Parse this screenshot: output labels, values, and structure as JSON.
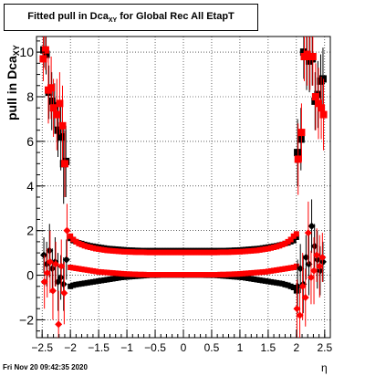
{
  "title": {
    "text_main": "Fitted pull in Dca",
    "text_sub": "XY",
    "text_rest": " for Global Rec All EtapT"
  },
  "footer_date": "Fri Nov 20 09:42:35 2020",
  "chart_data": {
    "type": "scatter",
    "xlabel": "η",
    "ylabel_main": "pull in Dca",
    "ylabel_sub": "XY",
    "xlim": [
      -2.6,
      2.6
    ],
    "ylim": [
      -2.8,
      10.7
    ],
    "xticks": [
      "-2.5",
      "-2",
      "-1.5",
      "-1",
      "-0.5",
      "0",
      "0.5",
      "1",
      "1.5",
      "2",
      "2.5"
    ],
    "yticks": [
      "-2",
      "0",
      "2",
      "4",
      "6",
      "8",
      "10"
    ],
    "grid": true,
    "colors": {
      "black": "#000000",
      "red": "#ff0000",
      "error_bar_red": "#ff0000"
    },
    "series": [
      {
        "color": "#000000",
        "marker": "square",
        "x": [
          -2.0,
          -1.95,
          -1.9,
          -1.85,
          -1.8,
          -1.75,
          -1.7,
          -1.65,
          -1.6,
          -1.55,
          -1.5,
          -1.45,
          -1.4,
          -1.35,
          -1.3,
          -1.25,
          -1.2,
          -1.15,
          -1.1,
          -1.05,
          -1.0,
          -0.95,
          -0.9,
          -0.85,
          -0.8,
          -0.75,
          -0.7,
          -0.65,
          -0.6,
          -0.55,
          -0.5,
          -0.45,
          -0.4,
          -0.35,
          -0.3,
          -0.25,
          -0.2,
          -0.15,
          -0.1,
          -0.05,
          0.0,
          0.05,
          0.1,
          0.15,
          0.2,
          0.25,
          0.3,
          0.35,
          0.4,
          0.45,
          0.5,
          0.55,
          0.6,
          0.65,
          0.7,
          0.75,
          0.8,
          0.85,
          0.9,
          0.95,
          1.0,
          1.05,
          1.1,
          1.15,
          1.2,
          1.25,
          1.3,
          1.35,
          1.4,
          1.45,
          1.5,
          1.55,
          1.6,
          1.65,
          1.7,
          1.75,
          1.8,
          1.85,
          1.9,
          1.95,
          2.0
        ],
        "y": [
          1.65,
          1.55,
          1.5,
          1.45,
          1.42,
          1.38,
          1.35,
          1.32,
          1.3,
          1.28,
          1.26,
          1.24,
          1.22,
          1.2,
          1.19,
          1.18,
          1.17,
          1.16,
          1.15,
          1.14,
          1.13,
          1.12,
          1.12,
          1.11,
          1.11,
          1.1,
          1.1,
          1.1,
          1.1,
          1.1,
          1.1,
          1.1,
          1.1,
          1.1,
          1.1,
          1.1,
          1.1,
          1.1,
          1.1,
          1.1,
          1.1,
          1.1,
          1.1,
          1.1,
          1.1,
          1.1,
          1.1,
          1.1,
          1.1,
          1.1,
          1.1,
          1.1,
          1.1,
          1.1,
          1.1,
          1.1,
          1.11,
          1.11,
          1.12,
          1.12,
          1.13,
          1.14,
          1.15,
          1.16,
          1.17,
          1.18,
          1.19,
          1.2,
          1.22,
          1.24,
          1.26,
          1.28,
          1.3,
          1.32,
          1.35,
          1.38,
          1.42,
          1.45,
          1.5,
          1.55,
          1.7
        ]
      },
      {
        "color": "#ff0000",
        "marker": "square",
        "x": [
          -2.0,
          -1.95,
          -1.9,
          -1.85,
          -1.8,
          -1.75,
          -1.7,
          -1.65,
          -1.6,
          -1.55,
          -1.5,
          -1.45,
          -1.4,
          -1.35,
          -1.3,
          -1.25,
          -1.2,
          -1.15,
          -1.1,
          -1.05,
          -1.0,
          -0.95,
          -0.9,
          -0.85,
          -0.8,
          -0.75,
          -0.7,
          -0.65,
          -0.6,
          -0.55,
          -0.5,
          -0.45,
          -0.4,
          -0.35,
          -0.3,
          -0.25,
          -0.2,
          -0.15,
          -0.1,
          -0.05,
          0.0,
          0.05,
          0.1,
          0.15,
          0.2,
          0.25,
          0.3,
          0.35,
          0.4,
          0.45,
          0.5,
          0.55,
          0.6,
          0.65,
          0.7,
          0.75,
          0.8,
          0.85,
          0.9,
          0.95,
          1.0,
          1.05,
          1.1,
          1.15,
          1.2,
          1.25,
          1.3,
          1.35,
          1.4,
          1.45,
          1.5,
          1.55,
          1.6,
          1.65,
          1.7,
          1.75,
          1.8,
          1.85,
          1.9,
          1.95,
          2.0
        ],
        "y": [
          1.75,
          1.6,
          1.5,
          1.42,
          1.37,
          1.32,
          1.28,
          1.25,
          1.22,
          1.19,
          1.17,
          1.15,
          1.13,
          1.11,
          1.1,
          1.09,
          1.08,
          1.07,
          1.06,
          1.05,
          1.05,
          1.04,
          1.04,
          1.03,
          1.03,
          1.03,
          1.03,
          1.02,
          1.02,
          1.02,
          1.02,
          1.02,
          1.02,
          1.02,
          1.02,
          1.02,
          1.02,
          1.02,
          1.02,
          1.02,
          1.02,
          1.02,
          1.02,
          1.02,
          1.02,
          1.02,
          1.02,
          1.02,
          1.02,
          1.02,
          1.02,
          1.02,
          1.02,
          1.03,
          1.03,
          1.03,
          1.03,
          1.04,
          1.04,
          1.05,
          1.05,
          1.06,
          1.07,
          1.08,
          1.09,
          1.1,
          1.11,
          1.13,
          1.15,
          1.17,
          1.19,
          1.22,
          1.25,
          1.28,
          1.32,
          1.37,
          1.42,
          1.5,
          1.6,
          1.75,
          1.85
        ]
      },
      {
        "color": "#000000",
        "marker": "square",
        "x": [
          -2.0,
          -1.95,
          -1.9,
          -1.85,
          -1.8,
          -1.75,
          -1.7,
          -1.65,
          -1.6,
          -1.55,
          -1.5,
          -1.45,
          -1.4,
          -1.35,
          -1.3,
          -1.25,
          -1.2,
          -1.15,
          -1.1,
          -1.05,
          -1.0,
          -0.95,
          -0.9,
          -0.85,
          -0.8,
          -0.75,
          -0.7,
          -0.65,
          -0.6,
          -0.55,
          -0.5,
          -0.45,
          -0.4,
          -0.35,
          -0.3,
          -0.25,
          -0.2,
          -0.15,
          -0.1,
          -0.05,
          0.0,
          0.05,
          0.1,
          0.15,
          0.2,
          0.25,
          0.3,
          0.35,
          0.4,
          0.45,
          0.5,
          0.55,
          0.6,
          0.65,
          0.7,
          0.75,
          0.8,
          0.85,
          0.9,
          0.95,
          1.0,
          1.05,
          1.1,
          1.15,
          1.2,
          1.25,
          1.3,
          1.35,
          1.4,
          1.45,
          1.5,
          1.55,
          1.6,
          1.65,
          1.7,
          1.75,
          1.8,
          1.85,
          1.9,
          1.95,
          2.0
        ],
        "y": [
          -0.5,
          -0.45,
          -0.42,
          -0.4,
          -0.38,
          -0.36,
          -0.34,
          -0.32,
          -0.3,
          -0.28,
          -0.26,
          -0.24,
          -0.22,
          -0.2,
          -0.18,
          -0.16,
          -0.14,
          -0.12,
          -0.1,
          -0.09,
          -0.08,
          -0.07,
          -0.06,
          -0.05,
          -0.04,
          -0.03,
          -0.02,
          -0.01,
          0.0,
          0.0,
          0.0,
          0.0,
          0.01,
          0.01,
          0.01,
          0.01,
          0.01,
          0.01,
          0.01,
          0.01,
          0.01,
          0.01,
          0.01,
          0.01,
          0.01,
          0.01,
          0.01,
          0.01,
          0.0,
          0.0,
          0.0,
          0.0,
          -0.01,
          -0.02,
          -0.03,
          -0.04,
          -0.05,
          -0.06,
          -0.07,
          -0.08,
          -0.09,
          -0.1,
          -0.12,
          -0.14,
          -0.16,
          -0.18,
          -0.2,
          -0.22,
          -0.24,
          -0.26,
          -0.28,
          -0.3,
          -0.32,
          -0.34,
          -0.36,
          -0.38,
          -0.42,
          -0.45,
          -0.5,
          -0.55,
          -0.7
        ]
      },
      {
        "color": "#ff0000",
        "marker": "square",
        "x": [
          -2.0,
          -1.95,
          -1.9,
          -1.85,
          -1.8,
          -1.75,
          -1.7,
          -1.65,
          -1.6,
          -1.55,
          -1.5,
          -1.45,
          -1.4,
          -1.35,
          -1.3,
          -1.25,
          -1.2,
          -1.15,
          -1.1,
          -1.05,
          -1.0,
          -0.95,
          -0.9,
          -0.85,
          -0.8,
          -0.75,
          -0.7,
          -0.65,
          -0.6,
          -0.55,
          -0.5,
          -0.45,
          -0.4,
          -0.35,
          -0.3,
          -0.25,
          -0.2,
          -0.15,
          -0.1,
          -0.05,
          0.0,
          0.05,
          0.1,
          0.15,
          0.2,
          0.25,
          0.3,
          0.35,
          0.4,
          0.45,
          0.5,
          0.55,
          0.6,
          0.65,
          0.7,
          0.75,
          0.8,
          0.85,
          0.9,
          0.95,
          1.0,
          1.05,
          1.1,
          1.15,
          1.2,
          1.25,
          1.3,
          1.35,
          1.4,
          1.45,
          1.5,
          1.55,
          1.6,
          1.65,
          1.7,
          1.75,
          1.8,
          1.85,
          1.9,
          1.95,
          2.0
        ],
        "y": [
          0.35,
          0.33,
          0.31,
          0.29,
          0.27,
          0.25,
          0.23,
          0.21,
          0.19,
          0.17,
          0.15,
          0.14,
          0.13,
          0.12,
          0.11,
          0.1,
          0.09,
          0.08,
          0.07,
          0.06,
          0.05,
          0.05,
          0.04,
          0.04,
          0.03,
          0.03,
          0.03,
          0.02,
          0.02,
          0.02,
          0.02,
          0.02,
          0.02,
          0.02,
          0.02,
          0.02,
          0.02,
          0.02,
          0.02,
          0.02,
          0.02,
          0.02,
          0.02,
          0.02,
          0.02,
          0.02,
          0.02,
          0.02,
          0.02,
          0.02,
          0.02,
          0.02,
          0.02,
          0.03,
          0.03,
          0.03,
          0.04,
          0.04,
          0.05,
          0.05,
          0.06,
          0.07,
          0.08,
          0.09,
          0.1,
          0.11,
          0.12,
          0.13,
          0.14,
          0.15,
          0.17,
          0.19,
          0.21,
          0.23,
          0.25,
          0.27,
          0.29,
          0.31,
          0.33,
          0.35,
          0.4
        ]
      },
      {
        "color": "#000000",
        "marker": "square",
        "errors": true,
        "x": [
          -2.47,
          -2.43,
          -2.38,
          -2.33,
          -2.28,
          -2.22,
          -2.17,
          -2.12,
          -2.08,
          2.02,
          2.08,
          2.13,
          2.18,
          2.23,
          2.28,
          2.33,
          2.38,
          2.43,
          2.47
        ],
        "y": [
          10.1,
          9.9,
          8.2,
          7.8,
          7.6,
          6.5,
          6.2,
          5.0,
          5.1,
          5.5,
          6.1,
          10.0,
          9.9,
          9.6,
          9.7,
          7.8,
          8.1,
          8.7,
          8.8
        ],
        "err": [
          0.8,
          0.9,
          1.2,
          1.3,
          1.0,
          1.2,
          1.5,
          1.8,
          1.6,
          1.5,
          1.4,
          1.2,
          1.6,
          1.4,
          1.2,
          1.3,
          1.5,
          1.2,
          1.4
        ]
      },
      {
        "color": "#ff0000",
        "marker": "square",
        "errors": true,
        "x": [
          -2.48,
          -2.44,
          -2.39,
          -2.34,
          -2.3,
          -2.24,
          -2.19,
          -2.14,
          -2.1,
          2.03,
          2.09,
          2.14,
          2.19,
          2.24,
          2.29,
          2.34,
          2.39,
          2.44,
          2.48
        ],
        "y": [
          9.7,
          10.1,
          8.3,
          8.4,
          7.5,
          7.2,
          7.7,
          6.7,
          5.0,
          5.2,
          6.4,
          9.8,
          9.9,
          9.8,
          9.8,
          8.0,
          7.7,
          7.5,
          7.2
        ],
        "err": [
          1.0,
          0.9,
          1.5,
          1.4,
          1.3,
          1.6,
          1.4,
          1.8,
          1.5,
          1.6,
          1.3,
          1.1,
          1.4,
          1.5,
          1.3,
          1.5,
          1.6,
          1.4,
          1.6
        ]
      },
      {
        "color": "#000000",
        "marker": "diamond",
        "errors": true,
        "x": [
          -2.47,
          -2.42,
          -2.37,
          -2.32,
          -2.27,
          -2.22,
          -2.17,
          -2.12,
          -2.07,
          2.02,
          2.07,
          2.12,
          2.17,
          2.22,
          2.27,
          2.32,
          2.37,
          2.42,
          2.47
        ],
        "y": [
          0.9,
          0.5,
          1.1,
          0.3,
          0.6,
          -0.3,
          -0.1,
          -0.4,
          0.7,
          -0.5,
          0.3,
          -0.4,
          0.8,
          0.5,
          2.2,
          1.3,
          0.7,
          0.2,
          0.6
        ],
        "err": [
          0.8,
          1.0,
          1.2,
          0.9,
          1.1,
          1.3,
          1.0,
          1.2,
          0.9,
          1.2,
          1.1,
          1.3,
          1.0,
          1.4,
          1.2,
          1.0,
          1.3,
          1.1,
          0.9
        ]
      },
      {
        "color": "#ff0000",
        "marker": "diamond",
        "errors": true,
        "x": [
          -2.46,
          -2.41,
          -2.36,
          -2.31,
          -2.26,
          -2.21,
          -2.16,
          -2.11,
          -2.06,
          2.01,
          2.06,
          2.11,
          2.16,
          2.21,
          2.26,
          2.31,
          2.36,
          2.41,
          2.46
        ],
        "y": [
          -0.3,
          0.1,
          0.6,
          -0.7,
          0.5,
          -2.2,
          0.4,
          -0.8,
          2.0,
          -1.5,
          -1.8,
          -0.5,
          -1.0,
          1.9,
          -0.1,
          0.2,
          0.9,
          0.4,
          0.8
        ],
        "err": [
          1.2,
          1.1,
          1.4,
          1.3,
          1.0,
          1.5,
          1.2,
          1.4,
          1.2,
          1.3,
          1.2,
          1.5,
          1.3,
          1.4,
          1.2,
          1.5,
          1.2,
          1.4,
          1.1
        ]
      }
    ]
  }
}
